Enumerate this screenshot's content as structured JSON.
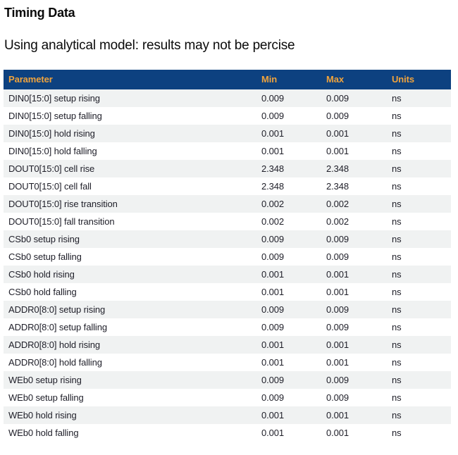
{
  "page": {
    "title": "Timing Data",
    "subtitle": "Using analytical model: results may not be percise"
  },
  "table": {
    "columns": [
      "Parameter",
      "Min",
      "Max",
      "Units"
    ],
    "rows": [
      {
        "parameter": "DIN0[15:0] setup rising",
        "min": "0.009",
        "max": "0.009",
        "units": "ns"
      },
      {
        "parameter": "DIN0[15:0] setup falling",
        "min": "0.009",
        "max": "0.009",
        "units": "ns"
      },
      {
        "parameter": "DIN0[15:0] hold rising",
        "min": "0.001",
        "max": "0.001",
        "units": "ns"
      },
      {
        "parameter": "DIN0[15:0] hold falling",
        "min": "0.001",
        "max": "0.001",
        "units": "ns"
      },
      {
        "parameter": "DOUT0[15:0] cell rise",
        "min": "2.348",
        "max": "2.348",
        "units": "ns"
      },
      {
        "parameter": "DOUT0[15:0] cell fall",
        "min": "2.348",
        "max": "2.348",
        "units": "ns"
      },
      {
        "parameter": "DOUT0[15:0] rise transition",
        "min": "0.002",
        "max": "0.002",
        "units": "ns"
      },
      {
        "parameter": "DOUT0[15:0] fall transition",
        "min": "0.002",
        "max": "0.002",
        "units": "ns"
      },
      {
        "parameter": "CSb0 setup rising",
        "min": "0.009",
        "max": "0.009",
        "units": "ns"
      },
      {
        "parameter": "CSb0 setup falling",
        "min": "0.009",
        "max": "0.009",
        "units": "ns"
      },
      {
        "parameter": "CSb0 hold rising",
        "min": "0.001",
        "max": "0.001",
        "units": "ns"
      },
      {
        "parameter": "CSb0 hold falling",
        "min": "0.001",
        "max": "0.001",
        "units": "ns"
      },
      {
        "parameter": "ADDR0[8:0] setup rising",
        "min": "0.009",
        "max": "0.009",
        "units": "ns"
      },
      {
        "parameter": "ADDR0[8:0] setup falling",
        "min": "0.009",
        "max": "0.009",
        "units": "ns"
      },
      {
        "parameter": "ADDR0[8:0] hold rising",
        "min": "0.001",
        "max": "0.001",
        "units": "ns"
      },
      {
        "parameter": "ADDR0[8:0] hold falling",
        "min": "0.001",
        "max": "0.001",
        "units": "ns"
      },
      {
        "parameter": "WEb0 setup rising",
        "min": "0.009",
        "max": "0.009",
        "units": "ns"
      },
      {
        "parameter": "WEb0 setup falling",
        "min": "0.009",
        "max": "0.009",
        "units": "ns"
      },
      {
        "parameter": "WEb0 hold rising",
        "min": "0.001",
        "max": "0.001",
        "units": "ns"
      },
      {
        "parameter": "WEb0 hold falling",
        "min": "0.001",
        "max": "0.001",
        "units": "ns"
      }
    ]
  },
  "colors": {
    "header_bg": "#0d4180",
    "header_text": "#f0a33c",
    "row_alt_bg": "#f0f2f2",
    "row_text": "#1e1e28"
  }
}
